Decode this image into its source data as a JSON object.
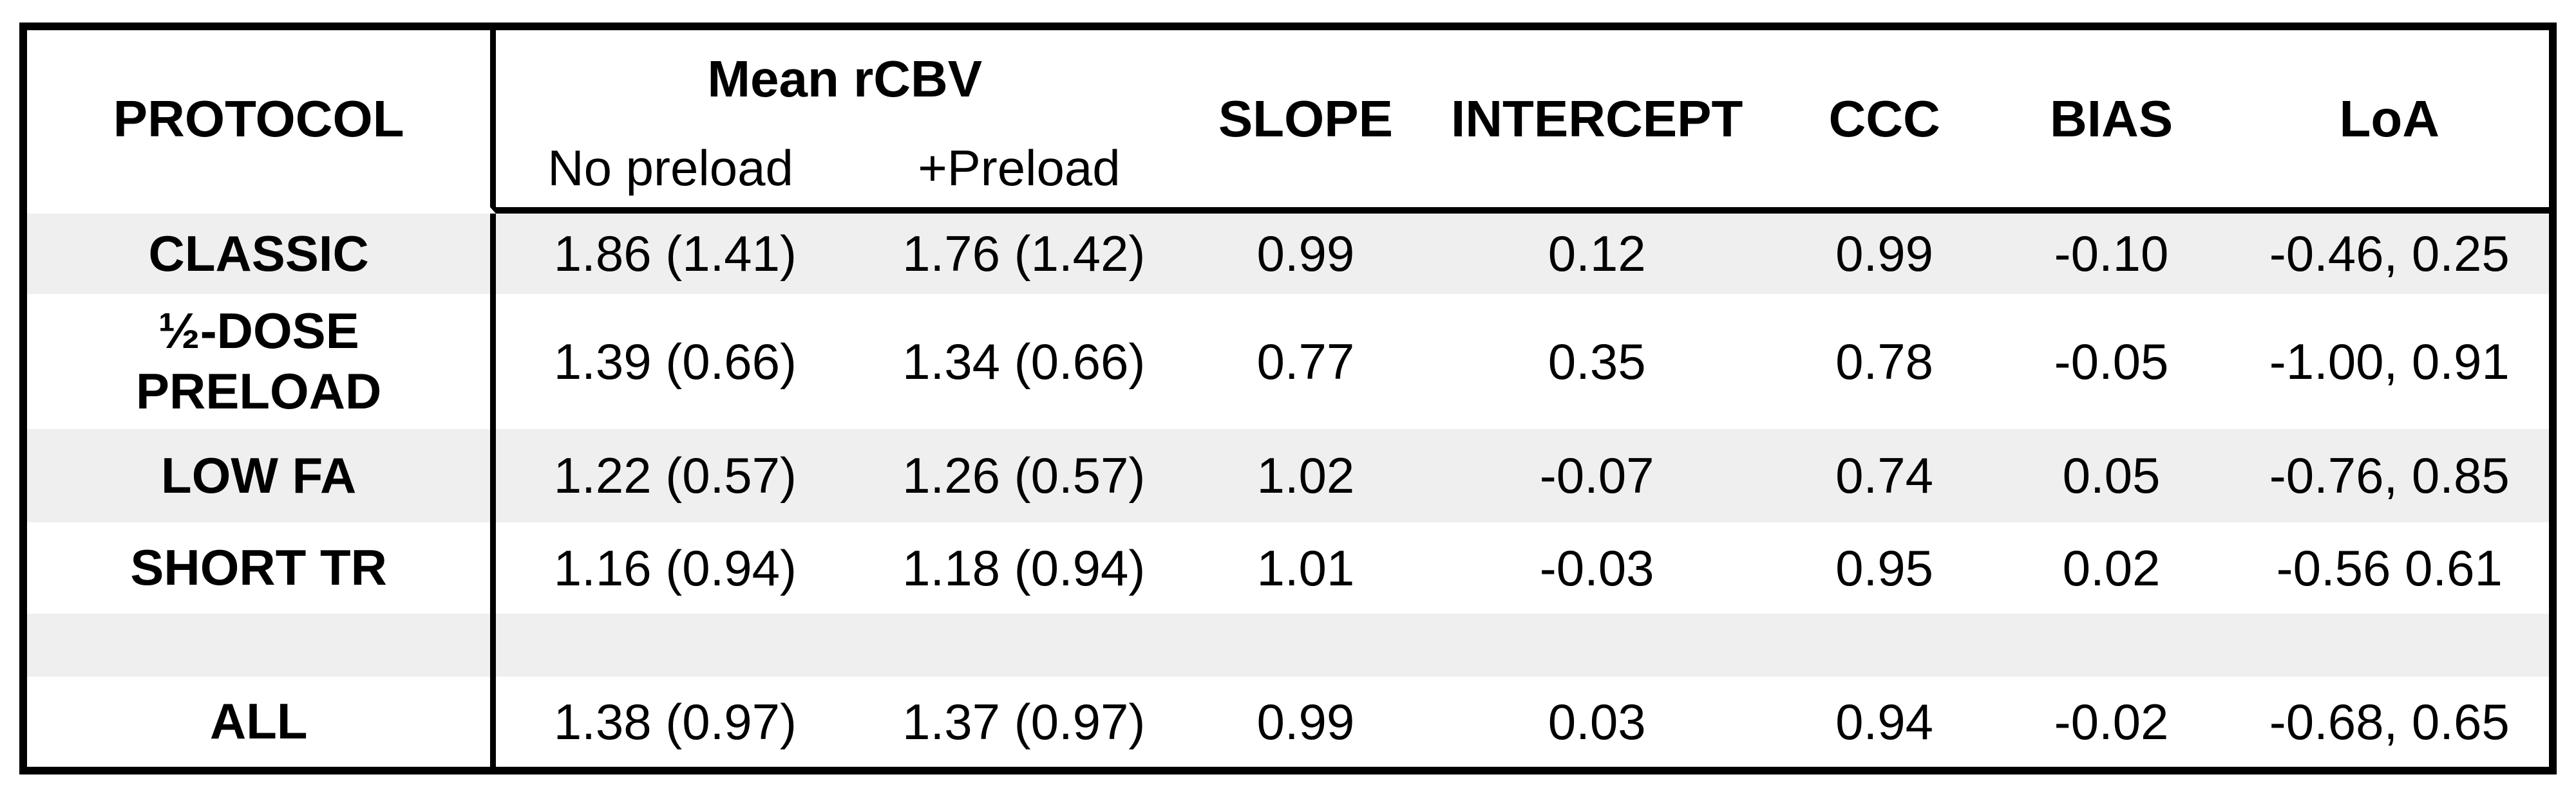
{
  "table": {
    "colors": {
      "border": "#000000",
      "stripe": "#efefef",
      "background": "#ffffff",
      "text": "#000000"
    },
    "headers": {
      "protocol": "PROTOCOL",
      "mean_rcbv_group": "Mean rCBV",
      "no_preload": "No preload",
      "plus_preload": "+Preload",
      "slope": "SLOPE",
      "intercept": "INTERCEPT",
      "ccc": "CCC",
      "bias": "BIAS",
      "loa": "LoA"
    },
    "rows": [
      {
        "protocol": "CLASSIC",
        "protocol_line2": "",
        "no_preload": "1.86 (1.41)",
        "plus_preload": "1.76 (1.42)",
        "slope": "0.99",
        "intercept": "0.12",
        "ccc": "0.99",
        "bias": "-0.10",
        "loa": "-0.46, 0.25"
      },
      {
        "protocol": "½-DOSE",
        "protocol_line2": "PRELOAD",
        "no_preload": "1.39 (0.66)",
        "plus_preload": "1.34 (0.66)",
        "slope": "0.77",
        "intercept": "0.35",
        "ccc": "0.78",
        "bias": "-0.05",
        "loa": "-1.00, 0.91"
      },
      {
        "protocol": "LOW FA",
        "protocol_line2": "",
        "no_preload": "1.22 (0.57)",
        "plus_preload": "1.26 (0.57)",
        "slope": "1.02",
        "intercept": "-0.07",
        "ccc": "0.74",
        "bias": "0.05",
        "loa": "-0.76, 0.85"
      },
      {
        "protocol": "SHORT TR",
        "protocol_line2": "",
        "no_preload": "1.16 (0.94)",
        "plus_preload": "1.18 (0.94)",
        "slope": "1.01",
        "intercept": "-0.03",
        "ccc": "0.95",
        "bias": "0.02",
        "loa": "-0.56 0.61"
      },
      {
        "protocol": "",
        "protocol_line2": "",
        "no_preload": "",
        "plus_preload": "",
        "slope": "",
        "intercept": "",
        "ccc": "",
        "bias": "",
        "loa": ""
      },
      {
        "protocol": "ALL",
        "protocol_line2": "",
        "no_preload": "1.38 (0.97)",
        "plus_preload": "1.37 (0.97)",
        "slope": "0.99",
        "intercept": "0.03",
        "ccc": "0.94",
        "bias": "-0.02",
        "loa": "-0.68, 0.65"
      }
    ]
  }
}
